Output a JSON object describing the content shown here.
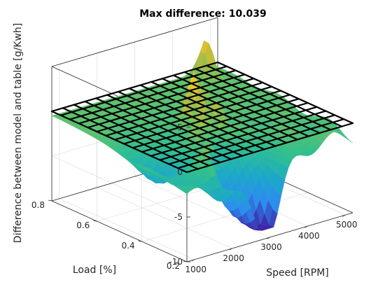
{
  "chart_data": {
    "type": "surface",
    "title": "Max difference: 10.039",
    "xlabel": "Speed [RPM]",
    "ylabel": "Load [%]",
    "zlabel": "Difference between model and table [g/Kwh]",
    "xlim": [
      800,
      5200
    ],
    "ylim": [
      0.2,
      0.8
    ],
    "zlim": [
      -10,
      5
    ],
    "xticks": [
      1000,
      2000,
      3000,
      4000,
      5000
    ],
    "yticks": [
      0.2,
      0.4,
      0.6,
      0.8
    ],
    "zticks": [
      -10,
      -5,
      0,
      5
    ],
    "grid": true,
    "mesh_plane_z": 0,
    "mesh_divisions": 15,
    "max_difference": 10.039,
    "colormap": [
      "#3e26a8",
      "#2d8cf0",
      "#1ca8c8",
      "#2fbf8f",
      "#79c25a",
      "#d8ba33",
      "#f9e11f"
    ],
    "mesh_color": "#000000",
    "surface_summary": {
      "min_z": -9.0,
      "max_z": 5.0,
      "peaks": [
        {
          "speed": 1900,
          "load": 0.3,
          "z": 2.5
        },
        {
          "speed": 2500,
          "load": 0.42,
          "z": 3.5
        },
        {
          "speed": 2900,
          "load": 0.52,
          "z": 5.0
        },
        {
          "speed": 3100,
          "load": 0.45,
          "z": 3.0
        },
        {
          "speed": 3600,
          "load": 0.6,
          "z": 1.5
        },
        {
          "speed": 4600,
          "load": 0.75,
          "z": 3.5
        }
      ],
      "troughs": [
        {
          "speed": 3000,
          "load": 0.2,
          "z": -9.0
        },
        {
          "speed": 2600,
          "load": 0.28,
          "z": -7.5
        },
        {
          "speed": 1400,
          "load": 0.45,
          "z": -6.0
        }
      ]
    }
  }
}
